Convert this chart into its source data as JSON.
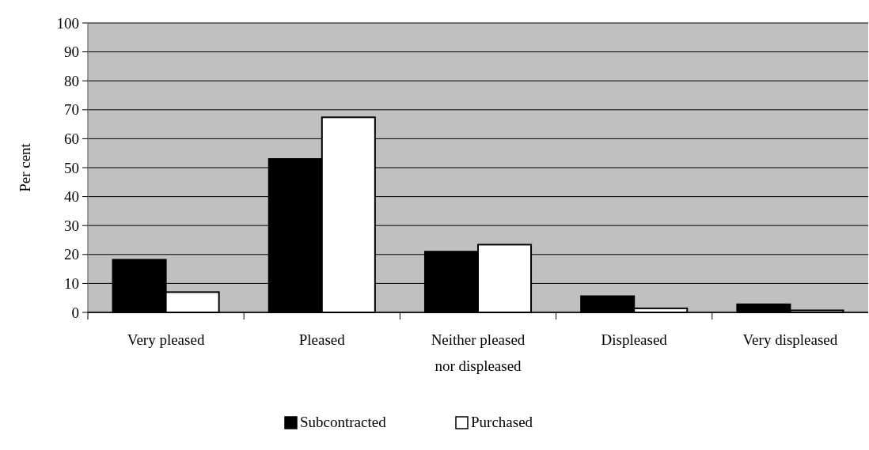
{
  "chart_data": {
    "type": "bar",
    "ylabel": "Per cent",
    "categories": [
      "Very pleased",
      "Pleased",
      "Neither pleased nor displeased",
      "Displeased",
      "Very displeased"
    ],
    "series": [
      {
        "name": "Subcontracted",
        "color": "#000000",
        "values": [
          18.2,
          53,
          21,
          5.6,
          2.8
        ]
      },
      {
        "name": "Purchased",
        "color": "#ffffff",
        "values": [
          7,
          67.4,
          23.4,
          1.4,
          0.7
        ]
      }
    ],
    "ylim": [
      0,
      100
    ],
    "yticks": [
      0,
      10,
      20,
      30,
      40,
      50,
      60,
      70,
      80,
      90,
      100
    ],
    "grid": "y",
    "legend": "bottom"
  }
}
